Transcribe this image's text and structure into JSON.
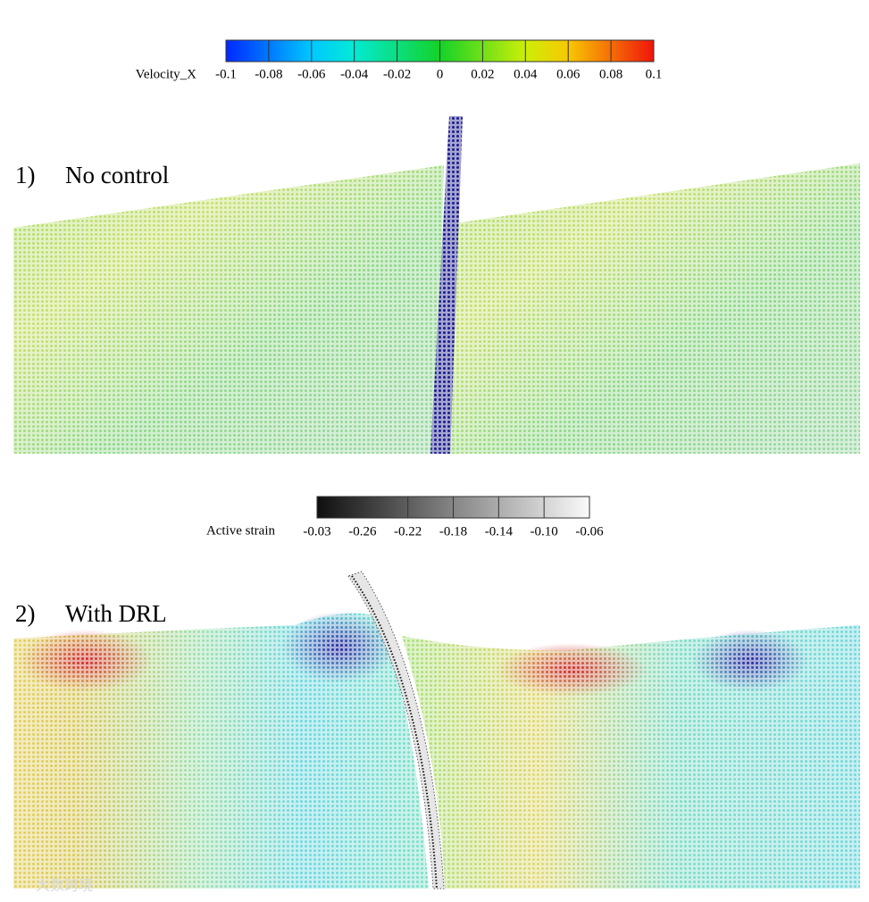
{
  "colorbar_velocity": {
    "label": "Velocity_X",
    "ticks": [
      "-0.1",
      "-0.08",
      "-0.06",
      "-0.04",
      "-0.02",
      "0",
      "0.02",
      "0.04",
      "0.06",
      "0.08",
      "0.1"
    ]
  },
  "panel_1": {
    "number": "1)",
    "title": "No control"
  },
  "colorbar_strain": {
    "label": "Active strain",
    "ticks": [
      "-0.03",
      "-0.26",
      "-0.22",
      "-0.18",
      "-0.14",
      "-0.10",
      "-0.06"
    ]
  },
  "panel_2": {
    "number": "2)",
    "title": "With DRL"
  },
  "watermark": "大数跨境"
}
